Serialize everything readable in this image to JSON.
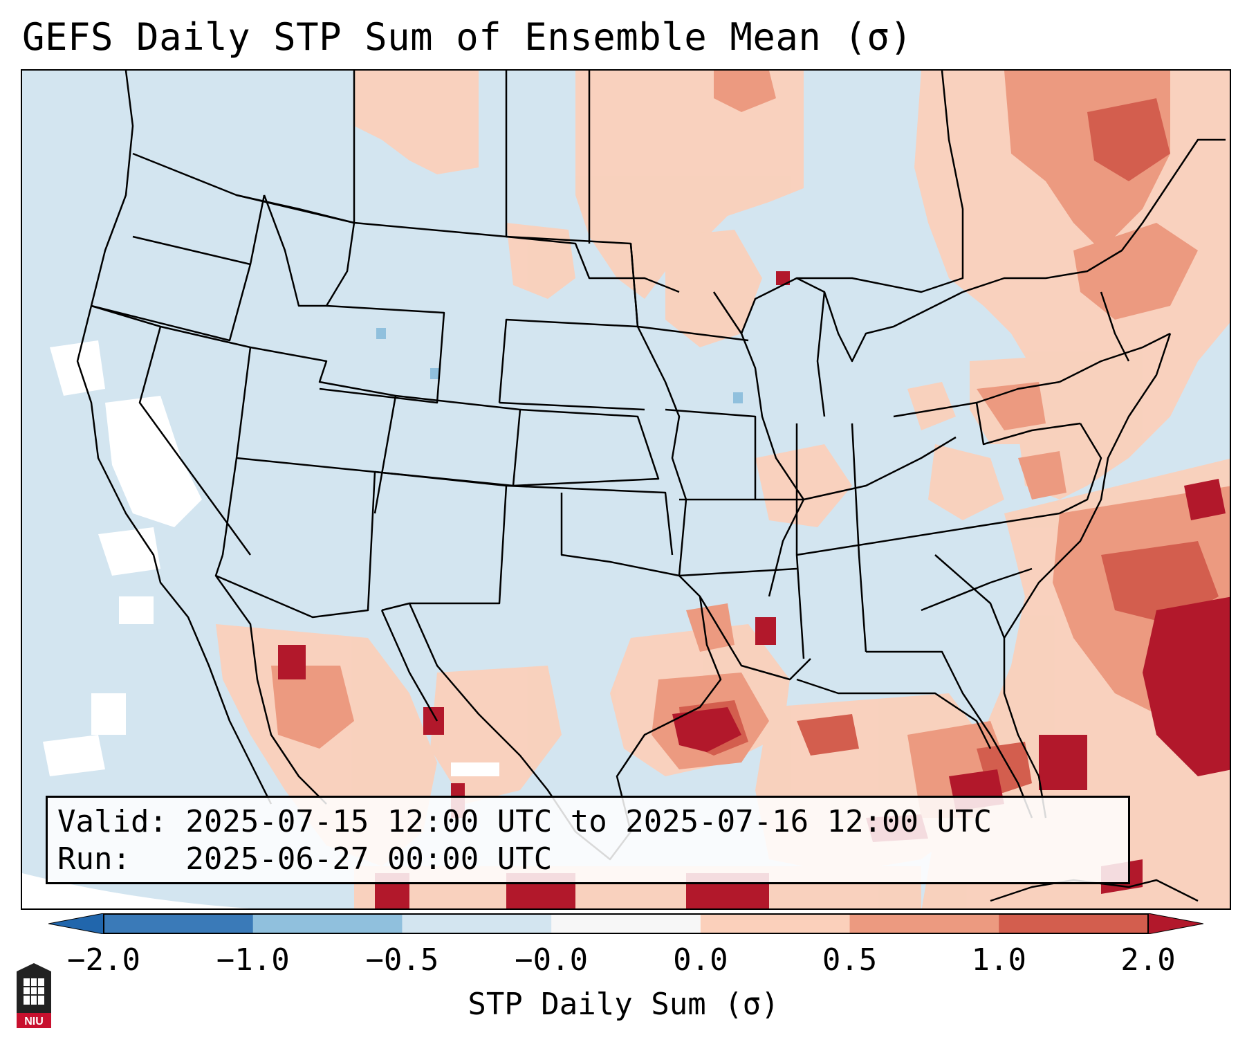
{
  "title": "GEFS Daily STP Sum of Ensemble Mean (σ)",
  "info": {
    "valid_line": "Valid: 2025-07-15 12:00 UTC to 2025-07-16 12:00 UTC",
    "run_line": "Run:   2025-06-27 00:00 UTC"
  },
  "colorbar": {
    "label": "STP Daily Sum (σ)",
    "ticks": [
      "−2.0",
      "−1.0",
      "−0.5",
      "−0.0",
      "0.0",
      "0.5",
      "1.0",
      "2.0"
    ],
    "colors": [
      "#3a7ab8",
      "#90c0dd",
      "#d3e5f0",
      "#f7f7f7",
      "#fbd0bb",
      "#ec9a80",
      "#d35e4e",
      "#b2182b"
    ],
    "extend_min_color": "#2166ac",
    "extend_max_color": "#b2182b"
  },
  "map": {
    "background_color": "#d3e5f0",
    "anomaly_colors": {
      "light": "#fbd0bb",
      "medium": "#ec9a80",
      "strong": "#d35e4e",
      "extreme": "#b2182b",
      "neg": "#90c0dd"
    }
  },
  "logo": {
    "text": "NIU"
  }
}
